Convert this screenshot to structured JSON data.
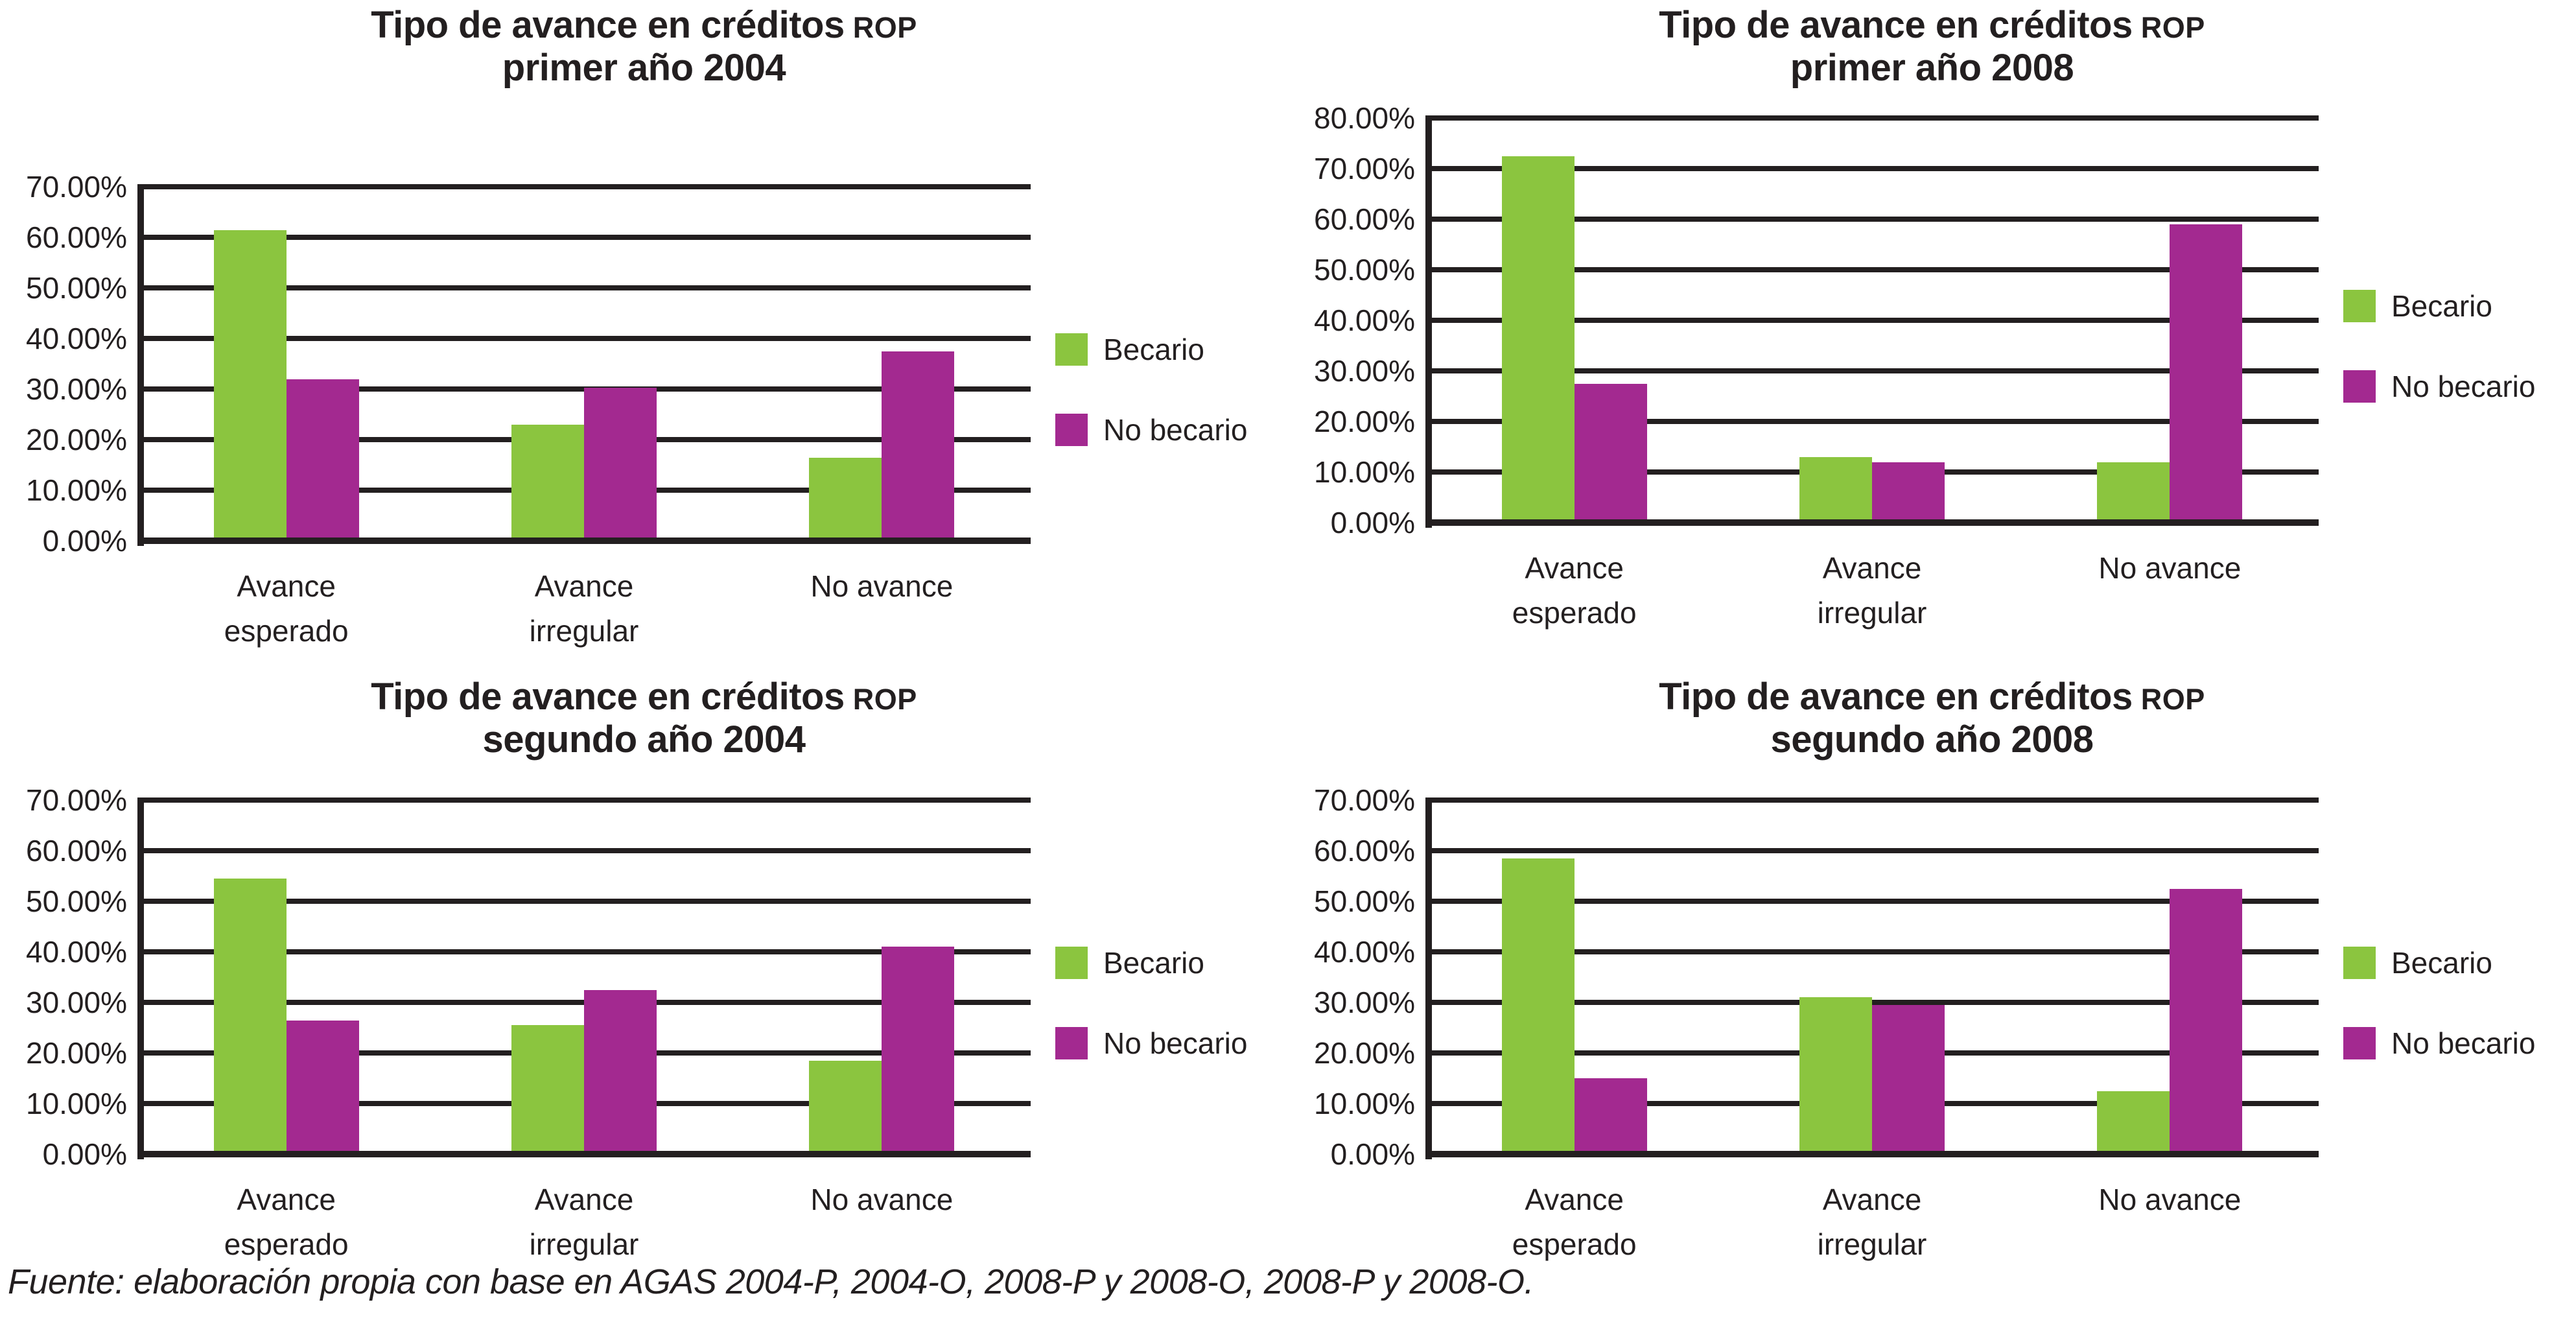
{
  "colors": {
    "becario": "#8BC53F",
    "no_becario": "#A32990",
    "grid": "#231F20",
    "text": "#231F20",
    "background": "#FFFFFF"
  },
  "legend": {
    "items": [
      {
        "label": "Becario",
        "color_key": "becario"
      },
      {
        "label": "No becario",
        "color_key": "no_becario"
      }
    ]
  },
  "chart_data": [
    {
      "type": "bar",
      "title_main": "Tipo de avance en créditos",
      "title_acronym": "ROP",
      "title_sub": "primer año 2004",
      "categories": [
        [
          "Avance",
          "esperado"
        ],
        [
          "Avance",
          "irregular"
        ],
        [
          "No avance"
        ]
      ],
      "series": [
        {
          "name": "Becario",
          "values": [
            61.5,
            23,
            16.5
          ]
        },
        {
          "name": "No becario",
          "values": [
            32,
            30.3,
            37.5
          ]
        }
      ],
      "ylim": [
        0,
        70
      ],
      "yticks": [
        "70.00%",
        "60.00%",
        "50.00%",
        "40.00%",
        "30.00%",
        "20.00%",
        "10.00%",
        "0.00%"
      ],
      "xlabel": "",
      "ylabel": "",
      "grid": "horizontal",
      "legend_position": "right"
    },
    {
      "type": "bar",
      "title_main": "Tipo de avance en créditos",
      "title_acronym": "ROP",
      "title_sub": "primer año 2008",
      "categories": [
        [
          "Avance",
          "esperado"
        ],
        [
          "Avance",
          "irregular"
        ],
        [
          "No avance"
        ]
      ],
      "series": [
        {
          "name": "Becario",
          "values": [
            72.5,
            13,
            12
          ]
        },
        {
          "name": "No becario",
          "values": [
            27.5,
            12,
            59
          ]
        }
      ],
      "ylim": [
        0,
        80
      ],
      "yticks": [
        "80.00%",
        "70.00%",
        "60.00%",
        "50.00%",
        "40.00%",
        "30.00%",
        "20.00%",
        "10.00%",
        "0.00%"
      ],
      "xlabel": "",
      "ylabel": "",
      "grid": "horizontal",
      "legend_position": "right"
    },
    {
      "type": "bar",
      "title_main": "Tipo de avance en créditos",
      "title_acronym": "ROP",
      "title_sub": "segundo año 2004",
      "categories": [
        [
          "Avance",
          "esperado"
        ],
        [
          "Avance",
          "irregular"
        ],
        [
          "No avance"
        ]
      ],
      "series": [
        {
          "name": "Becario",
          "values": [
            54.5,
            25.5,
            18.5
          ]
        },
        {
          "name": "No becario",
          "values": [
            26.5,
            32.5,
            41
          ]
        }
      ],
      "ylim": [
        0,
        70
      ],
      "yticks": [
        "70.00%",
        "60.00%",
        "50.00%",
        "40.00%",
        "30.00%",
        "20.00%",
        "10.00%",
        "0.00%"
      ],
      "xlabel": "",
      "ylabel": "",
      "grid": "horizontal",
      "legend_position": "right"
    },
    {
      "type": "bar",
      "title_main": "Tipo de avance en créditos",
      "title_acronym": "ROP",
      "title_sub": "segundo año 2008",
      "categories": [
        [
          "Avance",
          "esperado"
        ],
        [
          "Avance",
          "irregular"
        ],
        [
          "No avance"
        ]
      ],
      "series": [
        {
          "name": "Becario",
          "values": [
            58.5,
            31,
            12.5
          ]
        },
        {
          "name": "No becario",
          "values": [
            15,
            29.5,
            52.5
          ]
        }
      ],
      "ylim": [
        0,
        70
      ],
      "yticks": [
        "70.00%",
        "60.00%",
        "50.00%",
        "40.00%",
        "30.00%",
        "20.00%",
        "10.00%",
        "0.00%"
      ],
      "xlabel": "",
      "ylabel": "",
      "grid": "horizontal",
      "legend_position": "right"
    }
  ],
  "footer": {
    "text": "Fuente: elaboración propia con base en AGAS 2004-P, 2004-O, 2008-P y 2008-O, 2008-P y 2008-O."
  }
}
